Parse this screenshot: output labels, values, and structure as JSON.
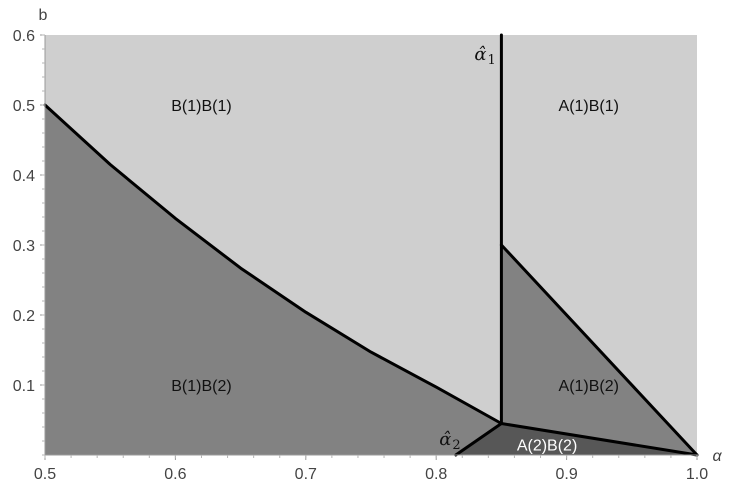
{
  "chart_data": {
    "type": "area",
    "title": "",
    "xlabel": "α",
    "ylabel": "b",
    "xlim": [
      0.5,
      1.0
    ],
    "ylim": [
      0.0,
      0.6
    ],
    "xticks": [
      "0.5",
      "0.6",
      "0.7",
      "0.8",
      "0.9",
      "1.0"
    ],
    "yticks": [
      "0.1",
      "0.2",
      "0.3",
      "0.4",
      "0.5",
      "0.6"
    ],
    "grid": false,
    "legend": "none",
    "colors": {
      "light": "#cfcfcf",
      "mid": "#828282",
      "dark": "#575757",
      "boundary": "#000000"
    },
    "thresholds": {
      "alpha_hat_1": {
        "label": "α̂",
        "sub": "1",
        "x": 0.85
      },
      "alpha_hat_2": {
        "label": "α̂",
        "sub": "2",
        "x": 0.82
      }
    },
    "boundaries": [
      {
        "name": "B(1)B(2) upper boundary",
        "points": [
          [
            0.5,
            0.5
          ],
          [
            0.55,
            0.415
          ],
          [
            0.6,
            0.338
          ],
          [
            0.65,
            0.267
          ],
          [
            0.7,
            0.204
          ],
          [
            0.75,
            0.147
          ],
          [
            0.8,
            0.097
          ],
          [
            0.85,
            0.045
          ]
        ]
      },
      {
        "name": "alpha-hat-1 line",
        "points": [
          [
            0.85,
            0.045
          ],
          [
            0.85,
            0.6
          ]
        ]
      },
      {
        "name": "A(1)B(2) upper boundary",
        "points": [
          [
            0.85,
            0.3
          ],
          [
            1.0,
            0.0
          ]
        ]
      },
      {
        "name": "A(2)B(2) upper boundary",
        "points": [
          [
            0.85,
            0.045
          ],
          [
            1.0,
            0.0
          ]
        ]
      },
      {
        "name": "A(2)B(2) left boundary",
        "points": [
          [
            0.815,
            0.0
          ],
          [
            0.85,
            0.045
          ]
        ]
      }
    ],
    "regions": [
      {
        "label": "B(1)B(1)",
        "shade": "light",
        "label_at": [
          0.62,
          0.5
        ],
        "label_color": "#111111"
      },
      {
        "label": "A(1)B(1)",
        "shade": "light",
        "label_at": [
          0.917,
          0.5
        ],
        "label_color": "#111111"
      },
      {
        "label": "B(1)B(2)",
        "shade": "mid",
        "label_at": [
          0.62,
          0.1
        ],
        "label_color": "#111111",
        "polygon": [
          [
            0.5,
            0.0
          ],
          [
            0.5,
            0.5
          ],
          [
            0.55,
            0.415
          ],
          [
            0.6,
            0.338
          ],
          [
            0.65,
            0.267
          ],
          [
            0.7,
            0.204
          ],
          [
            0.75,
            0.147
          ],
          [
            0.8,
            0.097
          ],
          [
            0.85,
            0.045
          ],
          [
            0.815,
            0.0
          ]
        ]
      },
      {
        "label": "A(1)B(2)",
        "shade": "mid",
        "label_at": [
          0.917,
          0.1
        ],
        "label_color": "#111111",
        "polygon": [
          [
            0.85,
            0.045
          ],
          [
            0.85,
            0.3
          ],
          [
            1.0,
            0.0
          ]
        ]
      },
      {
        "label": "A(2)B(2)",
        "shade": "dark",
        "label_at": [
          0.885,
          0.015
        ],
        "label_color": "#ffffff",
        "polygon": [
          [
            0.815,
            0.0
          ],
          [
            0.85,
            0.045
          ],
          [
            1.0,
            0.0
          ]
        ]
      }
    ]
  }
}
